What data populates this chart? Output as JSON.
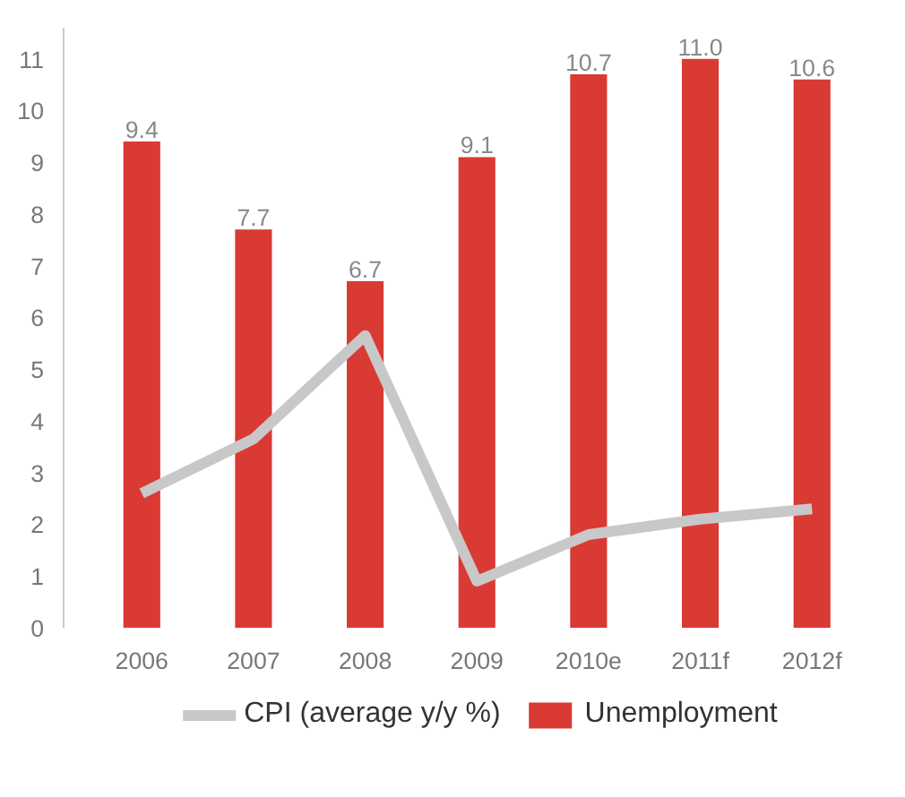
{
  "chart_data": {
    "type": "bar",
    "categories": [
      "2006",
      "2007",
      "2008",
      "2009",
      "2010e",
      "2011f",
      "2012f"
    ],
    "series": [
      {
        "name": "Unemployment",
        "color": "#d93a34",
        "values": [
          9.4,
          7.7,
          6.7,
          9.1,
          10.7,
          11.0,
          10.6
        ],
        "value_labels": [
          "9.4",
          "7.7",
          "6.7",
          "9.1",
          "10.7",
          "11.0",
          "10.6"
        ]
      },
      {
        "name": "CPI (average y/y %)",
        "type": "line",
        "color": "#c8c8c8",
        "values": [
          2.6,
          3.65,
          5.65,
          0.9,
          1.8,
          2.1,
          2.3
        ]
      }
    ],
    "ylim": [
      0,
      11.6
    ],
    "yticks": [
      0,
      1,
      2,
      3,
      4,
      5,
      6,
      7,
      8,
      9,
      10,
      11
    ],
    "grid": false,
    "legend": "bottom",
    "line_style": "solid",
    "marker": "none"
  }
}
